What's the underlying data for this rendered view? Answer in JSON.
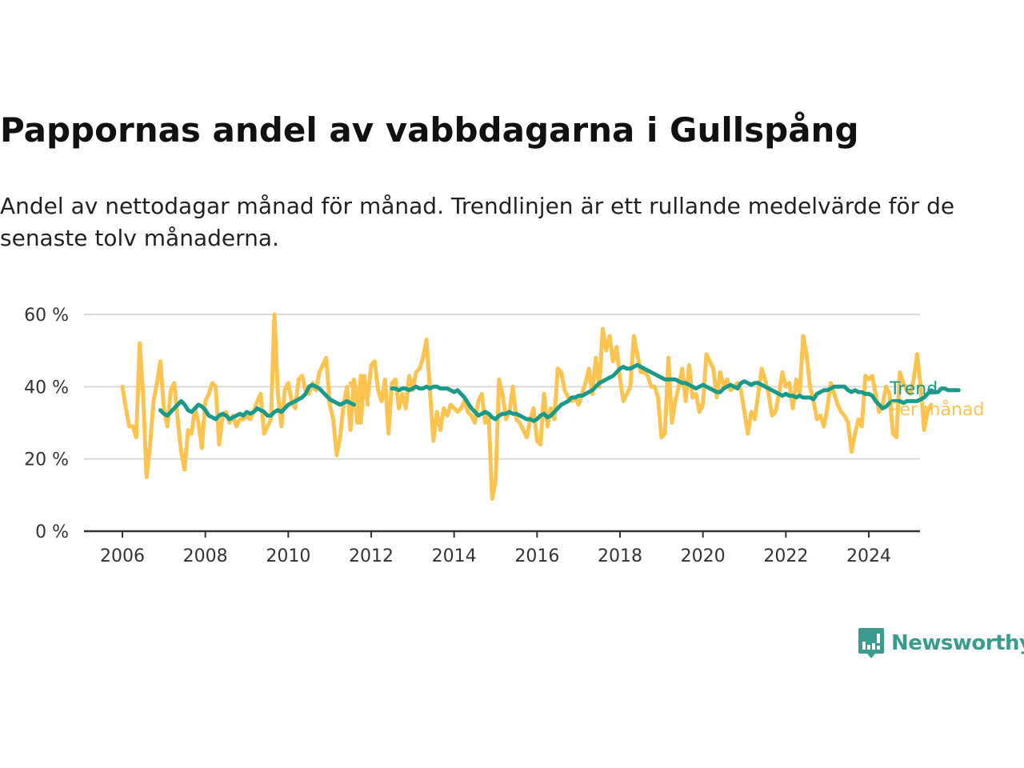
{
  "title": "Pappornas andel av vabbdagarna i Gullspång",
  "subtitle": "Andel av nettodagar månad för månad. Trendlinjen är ett rullande medelvärde för de senaste tolv månaderna.",
  "logo": {
    "text": "Newsworthy",
    "icon": "newsworthy-logo-icon",
    "color": "#3a9c8e"
  },
  "chart_data": {
    "type": "line",
    "x_unit": "year",
    "xlim": [
      2006,
      2024.5
    ],
    "ylim": [
      0,
      60
    ],
    "y_ticks": [
      0,
      20,
      40,
      60
    ],
    "y_tick_labels": [
      "0 %",
      "20 %",
      "40 %",
      "60 %"
    ],
    "x_ticks": [
      2006,
      2008,
      2010,
      2012,
      2014,
      2016,
      2018,
      2020,
      2022,
      2024
    ],
    "x_tick_labels": [
      "2006",
      "2008",
      "2010",
      "2012",
      "2014",
      "2016",
      "2018",
      "2020",
      "2022",
      "2024"
    ],
    "grid": true,
    "series": [
      {
        "name": "Per månad",
        "color": "#fcc44f",
        "width": 5,
        "segments": [
          {
            "start": 2006.0,
            "step": 0.08333,
            "values": [
              40,
              34,
              29,
              29,
              26,
              52,
              38,
              15,
              24,
              36,
              41,
              47,
              34,
              29,
              39,
              41,
              31,
              22,
              17,
              28,
              27,
              34,
              30,
              23,
              36,
              38,
              41,
              40,
              24,
              32,
              33,
              30,
              32,
              29,
              31,
              31,
              32,
              31,
              33,
              36,
              38,
              27,
              29,
              31,
              60,
              38,
              29,
              39,
              41,
              36,
              34,
              42,
              43,
              39,
              38,
              41,
              39,
              44,
              46,
              48,
              35,
              31,
              21,
              26,
              35,
              40,
              28,
              42,
              37,
              30,
              43,
              35
            ]
          },
          {
            "start": 2011.5,
            "step": 0.08333,
            "values": [
              41,
              39,
              30,
              43,
              37,
              37,
              46,
              47,
              39,
              36,
              42,
              27,
              41,
              42,
              34,
              38,
              34,
              43,
              39,
              44,
              45,
              48,
              53,
              39,
              25,
              33,
              28,
              34,
              32,
              35,
              34,
              33,
              34,
              36,
              33,
              32,
              30,
              36,
              38,
              30,
              32,
              9,
              14,
              42,
              38,
              31,
              33,
              40,
              31,
              30,
              28,
              26,
              31,
              34,
              25,
              24,
              38,
              29,
              34,
              31,
              45,
              44,
              39,
              37,
              36,
              37,
              35,
              38,
              41,
              45,
              38,
              48,
              40,
              56,
              50,
              54,
              47,
              51,
              42,
              36,
              38,
              40,
              54,
              49,
              44,
              44,
              43,
              40,
              40,
              37,
              26,
              27,
              48,
              30,
              36,
              40,
              45,
              36,
              46,
              37,
              38,
              33,
              35,
              49,
              47,
              45,
              37,
              44,
              40,
              42,
              39,
              40,
              41,
              39,
              33,
              27,
              33,
              31,
              38,
              45,
              42,
              38,
              32,
              33,
              38,
              44,
              40,
              41,
              34,
              42,
              38,
              54,
              49,
              40,
              36,
              31,
              32,
              29,
              34,
              41,
              38,
              35,
              33,
              32,
              30,
              22,
              27,
              31,
              29,
              43,
              42,
              43,
              38,
              33,
              35,
              40,
              38,
              27,
              26,
              44,
              41,
              39,
              38,
              42,
              49,
              40,
              28,
              33,
              35
            ]
          }
        ]
      },
      {
        "name": "Trend",
        "color": "#1a9a88",
        "width": 5,
        "segments": [
          {
            "start": 2006.917,
            "step": 0.08333,
            "values": [
              33.5,
              32.5,
              32,
              33,
              34,
              35,
              36,
              35,
              33.5,
              33,
              34,
              35,
              34.5,
              33.5,
              32,
              31.5,
              31,
              32,
              32.5,
              32,
              31,
              31.5,
              32,
              32.5,
              32,
              33,
              32.5,
              33,
              34,
              33.5,
              33,
              32,
              32,
              33,
              33.5,
              33,
              34,
              35,
              35.5,
              36,
              36.5,
              37,
              38,
              40,
              40.5,
              40,
              39.5,
              38.5,
              37.5,
              36.5,
              36,
              35.5,
              35,
              35.5,
              36,
              35.5,
              35
            ]
          },
          {
            "start": 2012.5,
            "step": 0.08333,
            "values": [
              39.5,
              39.5,
              39,
              39.5,
              39.5,
              39,
              39.5,
              40,
              39.5,
              39.5,
              40,
              39.5,
              40,
              40,
              39.5,
              39.5,
              39.5,
              39,
              38.5,
              39,
              38,
              37,
              35.5,
              34,
              33,
              32,
              32.5,
              33,
              32.5,
              31.5,
              31,
              32,
              32.5,
              32.5,
              33,
              32.5,
              32.5,
              32,
              31.5,
              31,
              31,
              30.5,
              31,
              32,
              32.5,
              31.5,
              32,
              33,
              34,
              35,
              35.5,
              36,
              37,
              37,
              37.5,
              37.5,
              38,
              38.5,
              39,
              40,
              41,
              41.5,
              42,
              42.5,
              43,
              44,
              45,
              45.5,
              45,
              45,
              45.5,
              46,
              45.5,
              45,
              44.5,
              44,
              43.5,
              43,
              42.5,
              42,
              42,
              42,
              42,
              41.5,
              41,
              41,
              40.5,
              40,
              39.5,
              40,
              40.5,
              40,
              39.5,
              39,
              38.5,
              38.5,
              39.5,
              40,
              40.5,
              40,
              39.5,
              41,
              41.5,
              41,
              40.5,
              41,
              41,
              40.5,
              40,
              39.5,
              39,
              38.5,
              38,
              37.5,
              38,
              37.5,
              37.5,
              37,
              37.5,
              37,
              37,
              37,
              36.5,
              38,
              38.5,
              39,
              39,
              39.5,
              40,
              40,
              40,
              40,
              39,
              38.5,
              39,
              38.5,
              38.5,
              38,
              38,
              37.5,
              36,
              35,
              34,
              34.5,
              35.5,
              36,
              36,
              36,
              35.5,
              36,
              36,
              36,
              36,
              36.5,
              37,
              38,
              39,
              38.5,
              38.5,
              39.5,
              39.5,
              39,
              39,
              39,
              39
            ]
          }
        ]
      }
    ]
  }
}
